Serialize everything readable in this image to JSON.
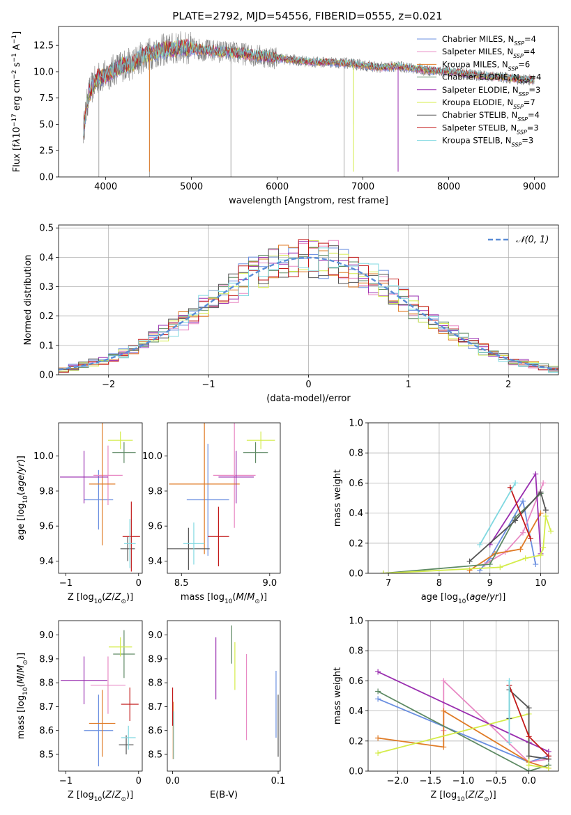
{
  "figure": {
    "title": "PLATE=2792, MJD=54556, FIBERID=0555, z=0.021"
  },
  "models": [
    {
      "name": "Chabrier MILES, N_SSP=4",
      "label": "Chabrier MILES, N",
      "sub": "SSP",
      "suffix": "=4",
      "color": "#6a8fe0"
    },
    {
      "name": "Salpeter MILES, N_SSP=4",
      "label": "Salpeter MILES, N",
      "sub": "SSP",
      "suffix": "=4",
      "color": "#e889c4"
    },
    {
      "name": "Kroupa MILES, N_SSP=6",
      "label": "Kroupa MILES, N",
      "sub": "SSP",
      "suffix": "=6",
      "color": "#e07b26"
    },
    {
      "name": "Chabrier ELODIE, N_SSP=4",
      "label": "Chabrier ELODIE, N",
      "sub": "SSP",
      "suffix": "=4",
      "color": "#5e8a64"
    },
    {
      "name": "Salpeter ELODIE, N_SSP=3",
      "label": "Salpeter ELODIE, N",
      "sub": "SSP",
      "suffix": "=3",
      "color": "#9a2fb0"
    },
    {
      "name": "Kroupa ELODIE, N_SSP=7",
      "label": "Kroupa ELODIE, N",
      "sub": "SSP",
      "suffix": "=7",
      "color": "#d4ec4a"
    },
    {
      "name": "Chabrier STELIB, N_SSP=4",
      "label": "Chabrier STELIB, N",
      "sub": "SSP",
      "suffix": "=4",
      "color": "#555555"
    },
    {
      "name": "Salpeter STELIB, N_SSP=3",
      "label": "Salpeter STELIB, N",
      "sub": "SSP",
      "suffix": "=3",
      "color": "#c21a1a"
    },
    {
      "name": "Kroupa STELIB, N_SSP=3",
      "label": "Kroupa STELIB, N",
      "sub": "SSP",
      "suffix": "=3",
      "color": "#7fd8e0"
    }
  ],
  "chart_data": [
    {
      "id": "spectrum",
      "type": "line",
      "xlabel": "wavelength [Angstrom, rest frame]",
      "ylabel_html": "Flux [f<tspan font-style='italic'>λ</tspan>10<tspan baseline-shift='super' font-size='9'>−17</tspan> erg cm<tspan baseline-shift='super' font-size='9'>−2</tspan> s<tspan baseline-shift='super' font-size='9'>−1</tspan> A<tspan baseline-shift='super' font-size='9'>−1</tspan>]",
      "xlim": [
        3450,
        9280
      ],
      "ylim": [
        0,
        14.3
      ],
      "xticks": [
        4000,
        5000,
        6000,
        7000,
        8000,
        9000
      ],
      "yticks": [
        0.0,
        2.5,
        5.0,
        7.5,
        10.0,
        12.5
      ],
      "ytick_labels": [
        "0.0",
        "2.5",
        "5.0",
        "7.5",
        "10.0",
        "12.5"
      ],
      "grid": false,
      "legend": "upper right",
      "continuum": [
        [
          3740,
          4.5
        ],
        [
          3800,
          7.8
        ],
        [
          3900,
          9.4
        ],
        [
          4000,
          9.6
        ],
        [
          4100,
          10.2
        ],
        [
          4200,
          10.6
        ],
        [
          4300,
          10.7
        ],
        [
          4400,
          11.3
        ],
        [
          4500,
          11.7
        ],
        [
          4600,
          11.9
        ],
        [
          4700,
          12.1
        ],
        [
          4800,
          12.2
        ],
        [
          4900,
          12.3
        ],
        [
          5000,
          12.2
        ],
        [
          5200,
          12.0
        ],
        [
          5400,
          11.9
        ],
        [
          5600,
          11.7
        ],
        [
          5800,
          11.5
        ],
        [
          6000,
          11.3
        ],
        [
          6200,
          11.1
        ],
        [
          6400,
          10.9
        ],
        [
          6600,
          10.9
        ],
        [
          6800,
          10.8
        ],
        [
          7000,
          10.6
        ],
        [
          7200,
          10.4
        ],
        [
          7400,
          10.5
        ],
        [
          7600,
          10.3
        ],
        [
          7800,
          10.1
        ],
        [
          8000,
          10.0
        ],
        [
          8200,
          9.8
        ],
        [
          8400,
          9.6
        ],
        [
          8600,
          9.5
        ],
        [
          8800,
          9.3
        ],
        [
          9000,
          9.2
        ]
      ],
      "spikes": [
        [
          3920,
          0.0
        ],
        [
          4510,
          0.0
        ],
        [
          5460,
          0.0
        ],
        [
          6780,
          0.0
        ],
        [
          6890,
          5.0
        ],
        [
          7410,
          1.0
        ]
      ]
    },
    {
      "id": "residuals",
      "type": "histogram",
      "xlabel": "(data-model)/error",
      "ylabel": "Normed distribution",
      "xlim": [
        -2.5,
        2.5
      ],
      "ylim": [
        0,
        0.51
      ],
      "xticks": [
        -2,
        -1,
        0,
        1,
        2
      ],
      "xtick_labels": [
        "−2",
        "−1",
        "0",
        "1",
        "2"
      ],
      "yticks": [
        0.0,
        0.1,
        0.2,
        0.3,
        0.4,
        0.5
      ],
      "ytick_labels": [
        "0.0",
        "0.1",
        "0.2",
        "0.3",
        "0.4",
        "0.5"
      ],
      "grid": true,
      "legend": "upper right",
      "gauss_label": "𝒩(0, 1)",
      "bin_width": 0.1,
      "x_start": -2.6
    },
    {
      "id": "age_vs_Z",
      "type": "scatter",
      "xlabel_html": "Z [log<tspan baseline-shift='sub' font-size='9'>10</tspan>(<tspan font-style='italic'>Z</tspan>/<tspan font-style='italic'>Z</tspan><tspan baseline-shift='sub' font-size='9'>⊙</tspan>)]",
      "ylabel_html": "age  [log<tspan baseline-shift='sub' font-size='9'>10</tspan>(<tspan font-style='italic'>age</tspan>/<tspan font-style='italic'>yr</tspan>)]",
      "xlim": [
        -1.1,
        0.05
      ],
      "ylim": [
        9.33,
        10.19
      ],
      "xticks": [
        -1,
        0
      ],
      "xtick_labels": [
        "−1",
        "0"
      ],
      "yticks": [
        9.4,
        9.6,
        9.8,
        10.0
      ],
      "ytick_labels": [
        "9.4",
        "9.6",
        "9.8",
        "10.0"
      ],
      "points": [
        {
          "x": -0.55,
          "y": 9.75,
          "xerr": 0.2,
          "yerr": 0.17
        },
        {
          "x": -0.42,
          "y": 9.89,
          "xerr": 0.2,
          "yerr": 0.17
        },
        {
          "x": -0.5,
          "y": 9.84,
          "xerr": 0.18,
          "yerr": 0.35
        },
        {
          "x": -0.2,
          "y": 10.02,
          "xerr": 0.16,
          "yerr": 0.06
        },
        {
          "x": -0.75,
          "y": 9.88,
          "xerr": 0.33,
          "yerr": 0.15
        },
        {
          "x": -0.25,
          "y": 10.09,
          "xerr": 0.17,
          "yerr": 0.05
        },
        {
          "x": -0.15,
          "y": 9.47,
          "xerr": 0.1,
          "yerr": 0.07
        },
        {
          "x": -0.1,
          "y": 9.54,
          "xerr": 0.12,
          "yerr": 0.2
        },
        {
          "x": -0.12,
          "y": 9.5,
          "xerr": 0.08,
          "yerr": 0.14
        }
      ]
    },
    {
      "id": "age_vs_mass",
      "type": "scatter",
      "xlabel_html": "mass [log<tspan baseline-shift='sub' font-size='9'>10</tspan>(<tspan font-style='italic'>M</tspan>/<tspan font-style='italic'>M</tspan><tspan baseline-shift='sub' font-size='9'>⊙</tspan>)]",
      "ylabel_html": "",
      "xlim": [
        8.42,
        9.06
      ],
      "ylim": [
        9.33,
        10.19
      ],
      "xticks": [
        8.5,
        9.0
      ],
      "xtick_labels": [
        "8.5",
        "9.0"
      ],
      "yticks": [
        9.4,
        9.6,
        9.8,
        10.0
      ],
      "ytick_labels": [
        "9.4",
        "9.6",
        "9.8",
        "10.0"
      ],
      "points": [
        {
          "x": 8.65,
          "y": 9.75,
          "xerr": 0.12,
          "yerr": 0.32
        },
        {
          "x": 8.8,
          "y": 9.89,
          "xerr": 0.12,
          "yerr": 0.3
        },
        {
          "x": 8.63,
          "y": 9.84,
          "xerr": 0.2,
          "yerr": 0.4
        },
        {
          "x": 8.92,
          "y": 10.02,
          "xerr": 0.07,
          "yerr": 0.06
        },
        {
          "x": 8.81,
          "y": 9.88,
          "xerr": 0.1,
          "yerr": 0.15
        },
        {
          "x": 8.95,
          "y": 10.09,
          "xerr": 0.08,
          "yerr": 0.05
        },
        {
          "x": 8.54,
          "y": 9.47,
          "xerr": 0.12,
          "yerr": 0.12
        },
        {
          "x": 8.71,
          "y": 9.54,
          "xerr": 0.06,
          "yerr": 0.17
        },
        {
          "x": 8.57,
          "y": 9.5,
          "xerr": 0.06,
          "yerr": 0.12
        }
      ]
    },
    {
      "id": "weight_vs_age",
      "type": "line",
      "xlabel_html": "age  [log<tspan baseline-shift='sub' font-size='9'>10</tspan>(<tspan font-style='italic'>age</tspan>/<tspan font-style='italic'>yr</tspan>)]",
      "ylabel": "mass weight",
      "xlim": [
        6.6,
        10.35
      ],
      "ylim": [
        0,
        1.0
      ],
      "xticks": [
        7,
        8,
        9,
        10
      ],
      "xtick_labels": [
        "7",
        "8",
        "9",
        "10"
      ],
      "yticks": [
        0.0,
        0.2,
        0.4,
        0.6,
        0.8,
        1.0
      ],
      "ytick_labels": [
        "0.0",
        "0.2",
        "0.4",
        "0.6",
        "0.8",
        "1.0"
      ],
      "grid": true,
      "series": [
        {
          "x": [
            8.8,
            9.0,
            9.65,
            9.9
          ],
          "y": [
            0.02,
            0.1,
            0.48,
            0.06
          ]
        },
        {
          "x": [
            8.9,
            9.3,
            9.65,
            10.05
          ],
          "y": [
            0.06,
            0.14,
            0.27,
            0.6
          ]
        },
        {
          "x": [
            8.6,
            9.1,
            9.6,
            10.0
          ],
          "y": [
            0.02,
            0.13,
            0.16,
            0.4
          ]
        },
        {
          "x": [
            6.9,
            9.0,
            9.5,
            10.0
          ],
          "y": [
            0.0,
            0.06,
            0.37,
            0.53
          ]
        },
        {
          "x": [
            9.0,
            9.9,
            10.0
          ],
          "y": [
            0.19,
            0.66,
            0.13
          ]
        },
        {
          "x": [
            6.9,
            9.2,
            9.7,
            10.0,
            10.05,
            10.1,
            10.2
          ],
          "y": [
            0.0,
            0.04,
            0.1,
            0.12,
            0.17,
            0.38,
            0.28
          ]
        },
        {
          "x": [
            8.6,
            9.5,
            10.0,
            10.1
          ],
          "y": [
            0.08,
            0.35,
            0.54,
            0.42
          ]
        },
        {
          "x": [
            9.4,
            9.8
          ],
          "y": [
            0.57,
            0.23
          ]
        },
        {
          "x": [
            8.8,
            9.5
          ],
          "y": [
            0.19,
            0.6
          ]
        }
      ]
    },
    {
      "id": "mass_vs_Z",
      "type": "scatter",
      "xlabel_html": "Z [log<tspan baseline-shift='sub' font-size='9'>10</tspan>(<tspan font-style='italic'>Z</tspan>/<tspan font-style='italic'>Z</tspan><tspan baseline-shift='sub' font-size='9'>⊙</tspan>)]",
      "ylabel_html": "mass [log<tspan baseline-shift='sub' font-size='9'>10</tspan>(<tspan font-style='italic'>M</tspan>/<tspan font-style='italic'>M</tspan><tspan baseline-shift='sub' font-size='9'>⊙</tspan>)]",
      "xlim": [
        -1.1,
        0.05
      ],
      "ylim": [
        8.43,
        9.06
      ],
      "xticks": [
        -1,
        0
      ],
      "xtick_labels": [
        "−1",
        "0"
      ],
      "yticks": [
        8.5,
        8.6,
        8.7,
        8.8,
        8.9,
        9.0
      ],
      "ytick_labels": [
        "8.5",
        "8.6",
        "8.7",
        "8.8",
        "8.9",
        "9.0"
      ],
      "points": [
        {
          "x": -0.55,
          "y": 8.6,
          "xerr": 0.2,
          "yerr": 0.15
        },
        {
          "x": -0.42,
          "y": 8.79,
          "xerr": 0.24,
          "yerr": 0.12
        },
        {
          "x": -0.5,
          "y": 8.63,
          "xerr": 0.18,
          "yerr": 0.14
        },
        {
          "x": -0.2,
          "y": 8.92,
          "xerr": 0.15,
          "yerr": 0.1
        },
        {
          "x": -0.75,
          "y": 8.81,
          "xerr": 0.32,
          "yerr": 0.1
        },
        {
          "x": -0.25,
          "y": 8.95,
          "xerr": 0.16,
          "yerr": 0.04
        },
        {
          "x": -0.17,
          "y": 8.54,
          "xerr": 0.1,
          "yerr": 0.04
        },
        {
          "x": -0.12,
          "y": 8.71,
          "xerr": 0.12,
          "yerr": 0.07
        },
        {
          "x": -0.14,
          "y": 8.57,
          "xerr": 0.1,
          "yerr": 0.05
        }
      ]
    },
    {
      "id": "mass_vs_ebv",
      "type": "scatter",
      "xlabel": "E(B-V)",
      "ylabel_html": "",
      "xlim": [
        -0.005,
        0.102
      ],
      "ylim": [
        8.43,
        9.06
      ],
      "xticks": [
        0.0,
        0.1
      ],
      "xtick_labels": [
        "0.0",
        "0.1"
      ],
      "yticks": [
        8.5,
        8.6,
        8.7,
        8.8,
        8.9,
        9.0
      ],
      "ytick_labels": [
        "8.5",
        "8.6",
        "8.7",
        "8.8",
        "8.9",
        "9.0"
      ],
      "points": [
        {
          "x": 0.098,
          "y": 8.71,
          "xerr": 0,
          "yerr": 0.14
        },
        {
          "x": 0.07,
          "y": 8.74,
          "xerr": 0,
          "yerr": 0.18
        },
        {
          "x": 0.0005,
          "y": 8.6,
          "xerr": 0,
          "yerr": 0.12
        },
        {
          "x": 0.056,
          "y": 8.96,
          "xerr": 0,
          "yerr": 0.08
        },
        {
          "x": 0.041,
          "y": 8.86,
          "xerr": 0,
          "yerr": 0.13
        },
        {
          "x": 0.059,
          "y": 8.87,
          "xerr": 0,
          "yerr": 0.1
        },
        {
          "x": 0.1,
          "y": 8.62,
          "xerr": 0,
          "yerr": 0.13
        },
        {
          "x": 0.0,
          "y": 8.7,
          "xerr": 0,
          "yerr": 0.08
        },
        {
          "x": 0.001,
          "y": 8.58,
          "xerr": 0,
          "yerr": 0.1
        }
      ]
    },
    {
      "id": "weight_vs_Z",
      "type": "line",
      "xlabel_html": "Z [log<tspan baseline-shift='sub' font-size='9'>10</tspan>(<tspan font-style='italic'>Z</tspan>/<tspan font-style='italic'>Z</tspan><tspan baseline-shift='sub' font-size='9'>⊙</tspan>)]",
      "ylabel": "mass weight",
      "xlim": [
        -2.45,
        0.45
      ],
      "ylim": [
        0,
        1.0
      ],
      "xticks": [
        -2.0,
        -1.5,
        -1.0,
        -0.5,
        0.0
      ],
      "xtick_labels": [
        "−2.0",
        "−1.5",
        "−1.0",
        "−0.5",
        "0.0"
      ],
      "yticks": [
        0.0,
        0.2,
        0.4,
        0.6,
        0.8,
        1.0
      ],
      "ytick_labels": [
        "0.0",
        "0.2",
        "0.4",
        "0.6",
        "0.8",
        "1.0"
      ],
      "grid": true,
      "series": [
        {
          "x": [
            -2.3,
            0.0,
            0.3
          ],
          "y": [
            0.48,
            0.06,
            0.1
          ]
        },
        {
          "x": [
            -1.3,
            -1.3,
            0.0,
            0.3
          ],
          "y": [
            0.27,
            0.6,
            0.06,
            0.08
          ]
        },
        {
          "x": [
            -2.3,
            -1.3,
            -1.3,
            0.0,
            0.3
          ],
          "y": [
            0.22,
            0.16,
            0.4,
            0.06,
            0.02
          ]
        },
        {
          "x": [
            -2.3,
            0.0,
            0.3
          ],
          "y": [
            0.53,
            0.0,
            0.04
          ]
        },
        {
          "x": [
            -2.3,
            0.0,
            0.3
          ],
          "y": [
            0.66,
            0.19,
            0.13
          ]
        },
        {
          "x": [
            -2.3,
            0.0,
            0.0,
            0.3
          ],
          "y": [
            0.12,
            0.38,
            0.04,
            0.02
          ]
        },
        {
          "x": [
            -0.3,
            -0.3,
            0.0,
            0.0,
            0.3
          ],
          "y": [
            0.35,
            0.54,
            0.42,
            0.1,
            0.08
          ]
        },
        {
          "x": [
            -0.3,
            0.0,
            0.3
          ],
          "y": [
            0.57,
            0.23,
            0.1
          ]
        },
        {
          "x": [
            -0.3,
            -0.3
          ],
          "y": [
            0.6,
            0.19
          ]
        }
      ]
    }
  ]
}
